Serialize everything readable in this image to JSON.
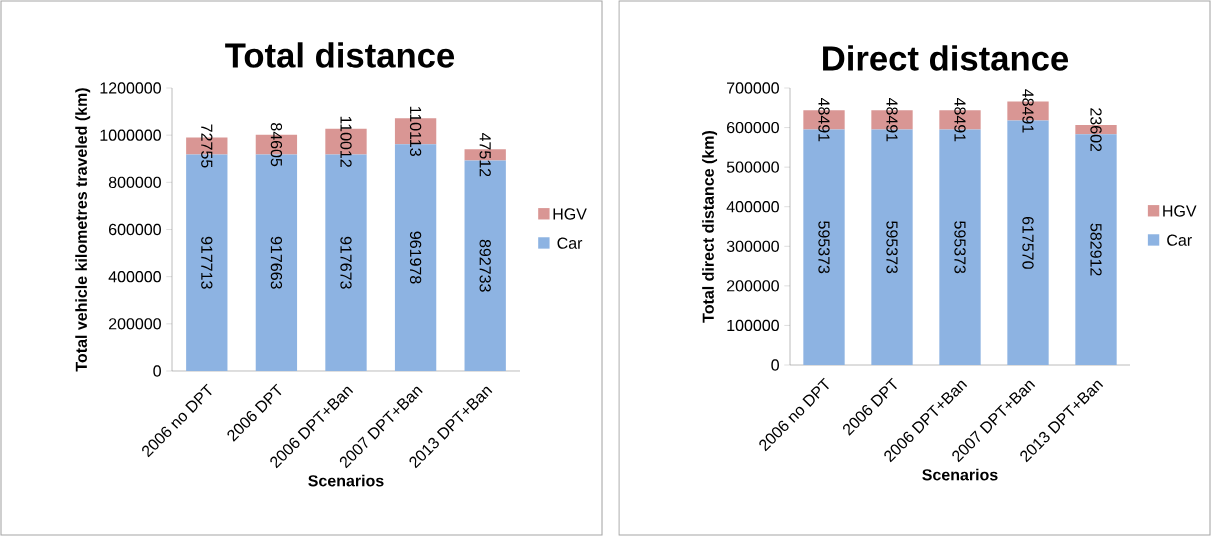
{
  "chart_data": [
    {
      "type": "bar",
      "stacked": true,
      "title": "Total distance",
      "xlabel": "Scenarios",
      "ylabel": "Total vehicle kilometres traveled (km)",
      "categories": [
        "2006 no DPT",
        "2006 DPT",
        "2006 DPT+Ban",
        "2007 DPT+Ban",
        "2013 DPT+Ban"
      ],
      "series": [
        {
          "name": "Car",
          "color": "#8db3e2",
          "values": [
            917713,
            917663,
            917673,
            961978,
            892733
          ]
        },
        {
          "name": "HGV",
          "color": "#d99694",
          "values": [
            72755,
            84605,
            110012,
            110113,
            47512
          ]
        }
      ],
      "ylim": [
        0,
        1200000
      ],
      "yticks": [
        0,
        200000,
        400000,
        600000,
        800000,
        1000000,
        1200000
      ],
      "data_labels": true,
      "legend": "right",
      "grid": false
    },
    {
      "type": "bar",
      "stacked": true,
      "title": "Direct distance",
      "xlabel": "Scenarios",
      "ylabel": "Total direct distance  (km)",
      "categories": [
        "2006 no DPT",
        "2006 DPT",
        "2006 DPT+Ban",
        "2007 DPT+Ban",
        "2013 DPT+Ban"
      ],
      "series": [
        {
          "name": "Car",
          "color": "#8db3e2",
          "values": [
            595373,
            595373,
            595373,
            617570,
            582912
          ]
        },
        {
          "name": "HGV",
          "color": "#d99694",
          "values": [
            48491,
            48491,
            48491,
            48491,
            23602
          ]
        }
      ],
      "ylim": [
        0,
        700000
      ],
      "yticks": [
        0,
        100000,
        200000,
        300000,
        400000,
        500000,
        600000,
        700000
      ],
      "data_labels": true,
      "legend": "right",
      "grid": false
    }
  ]
}
